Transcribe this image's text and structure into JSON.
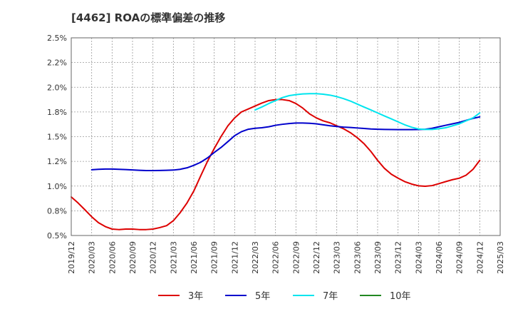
{
  "chart_data": {
    "type": "line",
    "title": "[4462]  ROAの標準偏差の推移",
    "xlabel": "",
    "ylabel": "",
    "x": [
      "2019/12",
      "2020/03",
      "2020/06",
      "2020/09",
      "2020/12",
      "2021/03",
      "2021/06",
      "2021/09",
      "2021/12",
      "2022/03",
      "2022/06",
      "2022/09",
      "2022/12",
      "2023/03",
      "2023/06",
      "2023/09",
      "2023/12",
      "2024/03",
      "2024/06",
      "2024/09",
      "2024/12",
      "2025/03"
    ],
    "ylim": [
      0.5,
      2.5
    ],
    "yticks": [
      0.5,
      0.75,
      1.0,
      1.25,
      1.5,
      1.75,
      2.0,
      2.25,
      2.5
    ],
    "ytick_labels": [
      "0.5%",
      "0.8%",
      "1.0%",
      "1.2%",
      "1.5%",
      "1.8%",
      "2.0%",
      "2.2%",
      "2.5%"
    ],
    "grid": true,
    "legend_position": "bottom",
    "series": [
      {
        "name": "3年",
        "color": "#dd0000",
        "points": [
          [
            0,
            0.89
          ],
          [
            0.33,
            0.83
          ],
          [
            0.67,
            0.76
          ],
          [
            1,
            0.69
          ],
          [
            1.33,
            0.63
          ],
          [
            1.67,
            0.59
          ],
          [
            2,
            0.565
          ],
          [
            2.33,
            0.56
          ],
          [
            2.67,
            0.565
          ],
          [
            3,
            0.565
          ],
          [
            3.33,
            0.56
          ],
          [
            3.67,
            0.56
          ],
          [
            4,
            0.565
          ],
          [
            4.33,
            0.58
          ],
          [
            4.67,
            0.6
          ],
          [
            5,
            0.65
          ],
          [
            5.33,
            0.73
          ],
          [
            5.67,
            0.83
          ],
          [
            6,
            0.95
          ],
          [
            6.33,
            1.1
          ],
          [
            6.67,
            1.25
          ],
          [
            7,
            1.38
          ],
          [
            7.33,
            1.5
          ],
          [
            7.67,
            1.61
          ],
          [
            8,
            1.69
          ],
          [
            8.33,
            1.75
          ],
          [
            8.67,
            1.78
          ],
          [
            9,
            1.81
          ],
          [
            9.33,
            1.84
          ],
          [
            9.67,
            1.865
          ],
          [
            10,
            1.875
          ],
          [
            10.33,
            1.875
          ],
          [
            10.67,
            1.865
          ],
          [
            11,
            1.835
          ],
          [
            11.33,
            1.79
          ],
          [
            11.67,
            1.73
          ],
          [
            12,
            1.69
          ],
          [
            12.33,
            1.66
          ],
          [
            12.67,
            1.64
          ],
          [
            13,
            1.61
          ],
          [
            13.33,
            1.58
          ],
          [
            13.67,
            1.54
          ],
          [
            14,
            1.49
          ],
          [
            14.33,
            1.43
          ],
          [
            14.67,
            1.35
          ],
          [
            15,
            1.26
          ],
          [
            15.33,
            1.18
          ],
          [
            15.67,
            1.12
          ],
          [
            16,
            1.08
          ],
          [
            16.33,
            1.045
          ],
          [
            16.67,
            1.02
          ],
          [
            17,
            1.003
          ],
          [
            17.33,
            0.998
          ],
          [
            17.67,
            1.005
          ],
          [
            18,
            1.025
          ],
          [
            18.33,
            1.045
          ],
          [
            18.67,
            1.065
          ],
          [
            19,
            1.08
          ],
          [
            19.33,
            1.11
          ],
          [
            19.67,
            1.17
          ],
          [
            20,
            1.26
          ]
        ]
      },
      {
        "name": "5年",
        "color": "#0000cc",
        "points": [
          [
            1,
            1.165
          ],
          [
            1.33,
            1.17
          ],
          [
            1.67,
            1.172
          ],
          [
            2,
            1.172
          ],
          [
            2.33,
            1.17
          ],
          [
            2.67,
            1.167
          ],
          [
            3,
            1.163
          ],
          [
            3.33,
            1.16
          ],
          [
            3.67,
            1.157
          ],
          [
            4,
            1.157
          ],
          [
            4.33,
            1.158
          ],
          [
            4.67,
            1.16
          ],
          [
            5,
            1.162
          ],
          [
            5.33,
            1.17
          ],
          [
            5.67,
            1.185
          ],
          [
            6,
            1.21
          ],
          [
            6.33,
            1.24
          ],
          [
            6.67,
            1.285
          ],
          [
            7,
            1.34
          ],
          [
            7.33,
            1.39
          ],
          [
            7.67,
            1.45
          ],
          [
            8,
            1.51
          ],
          [
            8.33,
            1.55
          ],
          [
            8.67,
            1.575
          ],
          [
            9,
            1.585
          ],
          [
            9.33,
            1.59
          ],
          [
            9.67,
            1.6
          ],
          [
            10,
            1.615
          ],
          [
            10.33,
            1.625
          ],
          [
            10.67,
            1.633
          ],
          [
            11,
            1.638
          ],
          [
            11.33,
            1.638
          ],
          [
            11.67,
            1.635
          ],
          [
            12,
            1.63
          ],
          [
            12.33,
            1.62
          ],
          [
            12.67,
            1.61
          ],
          [
            13,
            1.603
          ],
          [
            13.33,
            1.597
          ],
          [
            13.67,
            1.593
          ],
          [
            14,
            1.588
          ],
          [
            14.33,
            1.583
          ],
          [
            14.67,
            1.578
          ],
          [
            15,
            1.575
          ],
          [
            15.33,
            1.573
          ],
          [
            15.67,
            1.572
          ],
          [
            16,
            1.571
          ],
          [
            16.33,
            1.571
          ],
          [
            16.67,
            1.571
          ],
          [
            17,
            1.572
          ],
          [
            17.33,
            1.575
          ],
          [
            17.67,
            1.585
          ],
          [
            18,
            1.6
          ],
          [
            18.33,
            1.615
          ],
          [
            18.67,
            1.63
          ],
          [
            19,
            1.645
          ],
          [
            19.33,
            1.665
          ],
          [
            19.67,
            1.685
          ],
          [
            20,
            1.7
          ]
        ]
      },
      {
        "name": "7年",
        "color": "#00e5ee",
        "points": [
          [
            9,
            1.77
          ],
          [
            9.33,
            1.8
          ],
          [
            9.67,
            1.835
          ],
          [
            10,
            1.865
          ],
          [
            10.33,
            1.895
          ],
          [
            10.67,
            1.915
          ],
          [
            11,
            1.925
          ],
          [
            11.33,
            1.932
          ],
          [
            11.67,
            1.935
          ],
          [
            12,
            1.935
          ],
          [
            12.33,
            1.93
          ],
          [
            12.67,
            1.92
          ],
          [
            13,
            1.905
          ],
          [
            13.33,
            1.885
          ],
          [
            13.67,
            1.86
          ],
          [
            14,
            1.83
          ],
          [
            14.33,
            1.8
          ],
          [
            14.67,
            1.77
          ],
          [
            15,
            1.74
          ],
          [
            15.33,
            1.71
          ],
          [
            15.67,
            1.68
          ],
          [
            16,
            1.65
          ],
          [
            16.33,
            1.62
          ],
          [
            16.67,
            1.595
          ],
          [
            17,
            1.578
          ],
          [
            17.33,
            1.573
          ],
          [
            17.67,
            1.573
          ],
          [
            18,
            1.58
          ],
          [
            18.33,
            1.59
          ],
          [
            18.67,
            1.61
          ],
          [
            19,
            1.63
          ],
          [
            19.33,
            1.66
          ],
          [
            19.67,
            1.69
          ],
          [
            20,
            1.74
          ]
        ]
      },
      {
        "name": "10年",
        "color": "#228822",
        "points": []
      }
    ]
  }
}
